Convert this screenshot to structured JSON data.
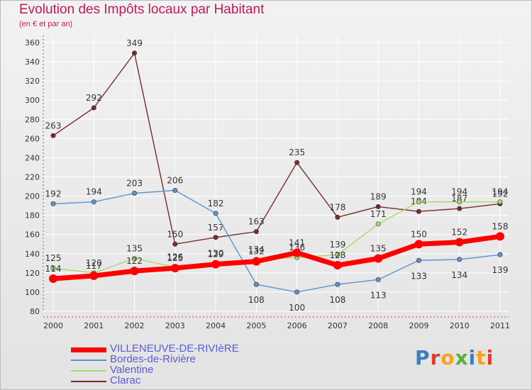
{
  "chart_data": {
    "type": "line",
    "title": "Evolution des Impôts locaux par Habitant",
    "subtitle": "(en € et par an)",
    "x": [
      "2000",
      "2001",
      "2002",
      "2003",
      "2004",
      "2005",
      "2006",
      "2007",
      "2008",
      "2009",
      "2010",
      "2011"
    ],
    "yticks": [
      80,
      100,
      120,
      140,
      160,
      180,
      200,
      220,
      240,
      260,
      280,
      300,
      320,
      340,
      360
    ],
    "ylim": [
      80,
      360
    ],
    "series": [
      {
        "name": "Clarac",
        "color": "#7a2b2b",
        "values": [
          263,
          292,
          349,
          150,
          157,
          163,
          235,
          178,
          189,
          184,
          187,
          192
        ]
      },
      {
        "name": "Bordes-de-Rivière",
        "color": "#5b93c9",
        "values": [
          192,
          194,
          203,
          206,
          182,
          108,
          100,
          108,
          113,
          133,
          134,
          139
        ]
      },
      {
        "name": "Valentine",
        "color": "#a6d96a",
        "values": [
          125,
          120,
          135,
          126,
          130,
          134,
          136,
          139,
          171,
          194,
          194,
          194
        ]
      },
      {
        "name": "VILLENEUVE-DE-RIVIèRE",
        "color": "#ff0000",
        "values": [
          114,
          117,
          122,
          125,
          129,
          132,
          141,
          128,
          135,
          150,
          152,
          158
        ]
      }
    ],
    "legend": [
      "VILLENEUVE-DE-RIVIèRE",
      "Bordes-de-Rivière",
      "Valentine",
      "Clarac"
    ],
    "legend_position": "bottom-left"
  },
  "brand": {
    "logo": "Proxiti"
  }
}
